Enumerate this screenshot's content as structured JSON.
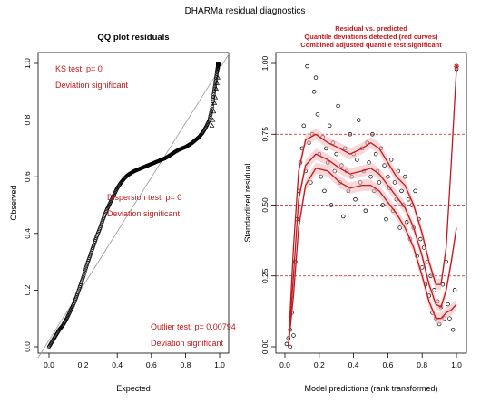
{
  "suptitle": "DHARMa residual diagnostics",
  "chart_data": [
    {
      "type": "scatter",
      "title": "QQ plot residuals",
      "xlabel": "Expected",
      "ylabel": "Observed",
      "xlim": [
        0,
        1
      ],
      "ylim": [
        0,
        1
      ],
      "xticks": [
        "0.0",
        "0.2",
        "0.4",
        "0.6",
        "0.8",
        "1.0"
      ],
      "yticks": [
        "0.0",
        "0.2",
        "0.4",
        "0.6",
        "0.8",
        "1.0"
      ],
      "reference_line": {
        "from": [
          0,
          0
        ],
        "to": [
          1,
          1
        ]
      },
      "qq_points": [
        [
          0.0,
          0.0
        ],
        [
          0.02,
          0.02
        ],
        [
          0.04,
          0.04
        ],
        [
          0.06,
          0.06
        ],
        [
          0.08,
          0.075
        ],
        [
          0.1,
          0.095
        ],
        [
          0.12,
          0.12
        ],
        [
          0.14,
          0.145
        ],
        [
          0.16,
          0.175
        ],
        [
          0.18,
          0.21
        ],
        [
          0.2,
          0.245
        ],
        [
          0.22,
          0.285
        ],
        [
          0.24,
          0.32
        ],
        [
          0.26,
          0.355
        ],
        [
          0.28,
          0.39
        ],
        [
          0.3,
          0.42
        ],
        [
          0.32,
          0.455
        ],
        [
          0.34,
          0.485
        ],
        [
          0.36,
          0.51
        ],
        [
          0.38,
          0.535
        ],
        [
          0.4,
          0.56
        ],
        [
          0.42,
          0.578
        ],
        [
          0.44,
          0.593
        ],
        [
          0.46,
          0.605
        ],
        [
          0.48,
          0.613
        ],
        [
          0.5,
          0.62
        ],
        [
          0.52,
          0.625
        ],
        [
          0.54,
          0.63
        ],
        [
          0.56,
          0.635
        ],
        [
          0.58,
          0.64
        ],
        [
          0.6,
          0.645
        ],
        [
          0.62,
          0.65
        ],
        [
          0.64,
          0.655
        ],
        [
          0.66,
          0.66
        ],
        [
          0.68,
          0.665
        ],
        [
          0.7,
          0.672
        ],
        [
          0.72,
          0.68
        ],
        [
          0.74,
          0.688
        ],
        [
          0.76,
          0.695
        ],
        [
          0.78,
          0.7
        ],
        [
          0.8,
          0.705
        ],
        [
          0.82,
          0.712
        ],
        [
          0.84,
          0.72
        ],
        [
          0.86,
          0.73
        ],
        [
          0.88,
          0.74
        ],
        [
          0.9,
          0.755
        ],
        [
          0.92,
          0.775
        ],
        [
          0.94,
          0.8
        ],
        [
          0.955,
          0.84
        ],
        [
          0.965,
          0.89
        ],
        [
          0.975,
          0.93
        ],
        [
          0.985,
          0.97
        ],
        [
          0.99,
          0.99
        ],
        [
          1.0,
          1.0
        ]
      ],
      "outlier_points": [
        [
          0.955,
          0.78
        ],
        [
          0.96,
          0.8
        ],
        [
          0.965,
          0.83
        ],
        [
          0.97,
          0.86
        ],
        [
          0.975,
          0.88
        ],
        [
          0.98,
          0.91
        ],
        [
          0.985,
          0.93
        ],
        [
          0.99,
          0.95
        ]
      ],
      "annotations": [
        {
          "text": "KS test: p= 0",
          "pos": "top-left"
        },
        {
          "text": "Deviation  significant",
          "pos": "top-left"
        },
        {
          "text": "Dispersion test: p= 0",
          "pos": "middle"
        },
        {
          "text": "Deviation  significant",
          "pos": "middle"
        },
        {
          "text": "Outlier test: p= 0.00794",
          "pos": "bottom-right"
        },
        {
          "text": "Deviation  significant",
          "pos": "bottom-right"
        }
      ]
    },
    {
      "type": "scatter",
      "title": "Residual vs. predicted",
      "subtitle_lines": [
        "Quantile deviations detected (red curves)",
        "Combined adjusted quantile test significant"
      ],
      "xlabel": "Model predictions (rank transformed)",
      "ylabel": "Standardized residual",
      "xlim": [
        0,
        1
      ],
      "ylim": [
        0,
        1
      ],
      "xticks": [
        "0.0",
        "0.2",
        "0.4",
        "0.6",
        "0.8",
        "1.0"
      ],
      "yticks": [
        "0.00",
        "0.25",
        "0.50",
        "0.75",
        "1.00"
      ],
      "hlines": [
        0.25,
        0.5,
        0.75
      ],
      "colors": {
        "curves": "#c0181c",
        "band": "#f2b7b9",
        "points": "#000000"
      },
      "quantile_curves": [
        {
          "quantile": 0.75,
          "points": [
            [
              0.02,
              0.0
            ],
            [
              0.05,
              0.35
            ],
            [
              0.08,
              0.62
            ],
            [
              0.12,
              0.73
            ],
            [
              0.18,
              0.75
            ],
            [
              0.25,
              0.72
            ],
            [
              0.32,
              0.7
            ],
            [
              0.38,
              0.68
            ],
            [
              0.45,
              0.7
            ],
            [
              0.5,
              0.72
            ],
            [
              0.55,
              0.7
            ],
            [
              0.6,
              0.65
            ],
            [
              0.65,
              0.6
            ],
            [
              0.7,
              0.57
            ],
            [
              0.75,
              0.5
            ],
            [
              0.8,
              0.4
            ],
            [
              0.84,
              0.3
            ],
            [
              0.88,
              0.22
            ],
            [
              0.91,
              0.22
            ],
            [
              0.94,
              0.35
            ],
            [
              0.97,
              0.65
            ],
            [
              1.0,
              0.98
            ]
          ]
        },
        {
          "quantile": 0.5,
          "points": [
            [
              0.02,
              0.0
            ],
            [
              0.05,
              0.25
            ],
            [
              0.08,
              0.52
            ],
            [
              0.12,
              0.64
            ],
            [
              0.18,
              0.68
            ],
            [
              0.25,
              0.66
            ],
            [
              0.32,
              0.63
            ],
            [
              0.38,
              0.61
            ],
            [
              0.45,
              0.62
            ],
            [
              0.5,
              0.63
            ],
            [
              0.55,
              0.61
            ],
            [
              0.6,
              0.57
            ],
            [
              0.65,
              0.53
            ],
            [
              0.7,
              0.49
            ],
            [
              0.75,
              0.42
            ],
            [
              0.8,
              0.32
            ],
            [
              0.84,
              0.22
            ],
            [
              0.88,
              0.15
            ],
            [
              0.91,
              0.14
            ],
            [
              0.94,
              0.2
            ],
            [
              0.97,
              0.3
            ],
            [
              1.0,
              0.42
            ]
          ]
        },
        {
          "quantile": 0.25,
          "points": [
            [
              0.02,
              0.0
            ],
            [
              0.05,
              0.18
            ],
            [
              0.08,
              0.42
            ],
            [
              0.12,
              0.57
            ],
            [
              0.18,
              0.63
            ],
            [
              0.25,
              0.62
            ],
            [
              0.32,
              0.58
            ],
            [
              0.38,
              0.56
            ],
            [
              0.45,
              0.57
            ],
            [
              0.5,
              0.57
            ],
            [
              0.55,
              0.55
            ],
            [
              0.6,
              0.51
            ],
            [
              0.65,
              0.47
            ],
            [
              0.7,
              0.42
            ],
            [
              0.75,
              0.35
            ],
            [
              0.8,
              0.25
            ],
            [
              0.84,
              0.16
            ],
            [
              0.88,
              0.1
            ],
            [
              0.91,
              0.1
            ],
            [
              0.94,
              0.12
            ],
            [
              0.97,
              0.13
            ],
            [
              1.0,
              0.15
            ]
          ]
        }
      ],
      "residual_points": [
        [
          0.01,
          0.01
        ],
        [
          0.02,
          0.03
        ],
        [
          0.03,
          0.06
        ],
        [
          0.03,
          0.0
        ],
        [
          0.04,
          0.12
        ],
        [
          0.05,
          0.04
        ],
        [
          0.06,
          0.3
        ],
        [
          0.07,
          0.45
        ],
        [
          0.08,
          0.55
        ],
        [
          0.09,
          0.65
        ],
        [
          0.1,
          0.7
        ],
        [
          0.11,
          0.78
        ],
        [
          0.12,
          0.62
        ],
        [
          0.13,
          0.99
        ],
        [
          0.14,
          0.72
        ],
        [
          0.15,
          0.58
        ],
        [
          0.16,
          0.75
        ],
        [
          0.17,
          0.9
        ],
        [
          0.18,
          0.95
        ],
        [
          0.19,
          0.82
        ],
        [
          0.2,
          0.68
        ],
        [
          0.21,
          0.6
        ],
        [
          0.22,
          0.74
        ],
        [
          0.23,
          0.55
        ],
        [
          0.24,
          0.7
        ],
        [
          0.25,
          0.65
        ],
        [
          0.26,
          0.78
        ],
        [
          0.27,
          0.5
        ],
        [
          0.28,
          0.72
        ],
        [
          0.29,
          0.62
        ],
        [
          0.3,
          0.68
        ],
        [
          0.31,
          0.85
        ],
        [
          0.32,
          0.58
        ],
        [
          0.33,
          0.64
        ],
        [
          0.34,
          0.46
        ],
        [
          0.35,
          0.7
        ],
        [
          0.36,
          0.62
        ],
        [
          0.37,
          0.55
        ],
        [
          0.38,
          0.75
        ],
        [
          0.39,
          0.6
        ],
        [
          0.4,
          0.68
        ],
        [
          0.41,
          0.52
        ],
        [
          0.42,
          0.66
        ],
        [
          0.43,
          0.8
        ],
        [
          0.44,
          0.58
        ],
        [
          0.45,
          0.7
        ],
        [
          0.46,
          0.62
        ],
        [
          0.47,
          0.48
        ],
        [
          0.48,
          0.72
        ],
        [
          0.49,
          0.65
        ],
        [
          0.5,
          0.6
        ],
        [
          0.51,
          0.75
        ],
        [
          0.52,
          0.55
        ],
        [
          0.53,
          0.68
        ],
        [
          0.54,
          0.62
        ],
        [
          0.55,
          0.58
        ],
        [
          0.56,
          0.7
        ],
        [
          0.57,
          0.5
        ],
        [
          0.58,
          0.64
        ],
        [
          0.59,
          0.45
        ],
        [
          0.6,
          0.6
        ],
        [
          0.61,
          0.56
        ],
        [
          0.62,
          0.66
        ],
        [
          0.63,
          0.48
        ],
        [
          0.64,
          0.58
        ],
        [
          0.65,
          0.52
        ],
        [
          0.66,
          0.62
        ],
        [
          0.67,
          0.42
        ],
        [
          0.68,
          0.55
        ],
        [
          0.69,
          0.5
        ],
        [
          0.7,
          0.6
        ],
        [
          0.71,
          0.44
        ],
        [
          0.72,
          0.52
        ],
        [
          0.73,
          0.38
        ],
        [
          0.74,
          0.5
        ],
        [
          0.75,
          0.42
        ],
        [
          0.76,
          0.55
        ],
        [
          0.77,
          0.32
        ],
        [
          0.78,
          0.45
        ],
        [
          0.79,
          0.38
        ],
        [
          0.8,
          0.28
        ],
        [
          0.81,
          0.35
        ],
        [
          0.82,
          0.22
        ],
        [
          0.83,
          0.3
        ],
        [
          0.84,
          0.18
        ],
        [
          0.85,
          0.25
        ],
        [
          0.86,
          0.12
        ],
        [
          0.87,
          0.2
        ],
        [
          0.88,
          0.1
        ],
        [
          0.89,
          0.16
        ],
        [
          0.9,
          0.08
        ],
        [
          0.91,
          0.14
        ],
        [
          0.92,
          0.22
        ],
        [
          0.93,
          0.1
        ],
        [
          0.94,
          0.3
        ],
        [
          0.95,
          0.15
        ],
        [
          0.96,
          0.1
        ],
        [
          0.98,
          0.06
        ],
        [
          0.99,
          0.2
        ],
        [
          1.0,
          0.98
        ]
      ]
    }
  ]
}
